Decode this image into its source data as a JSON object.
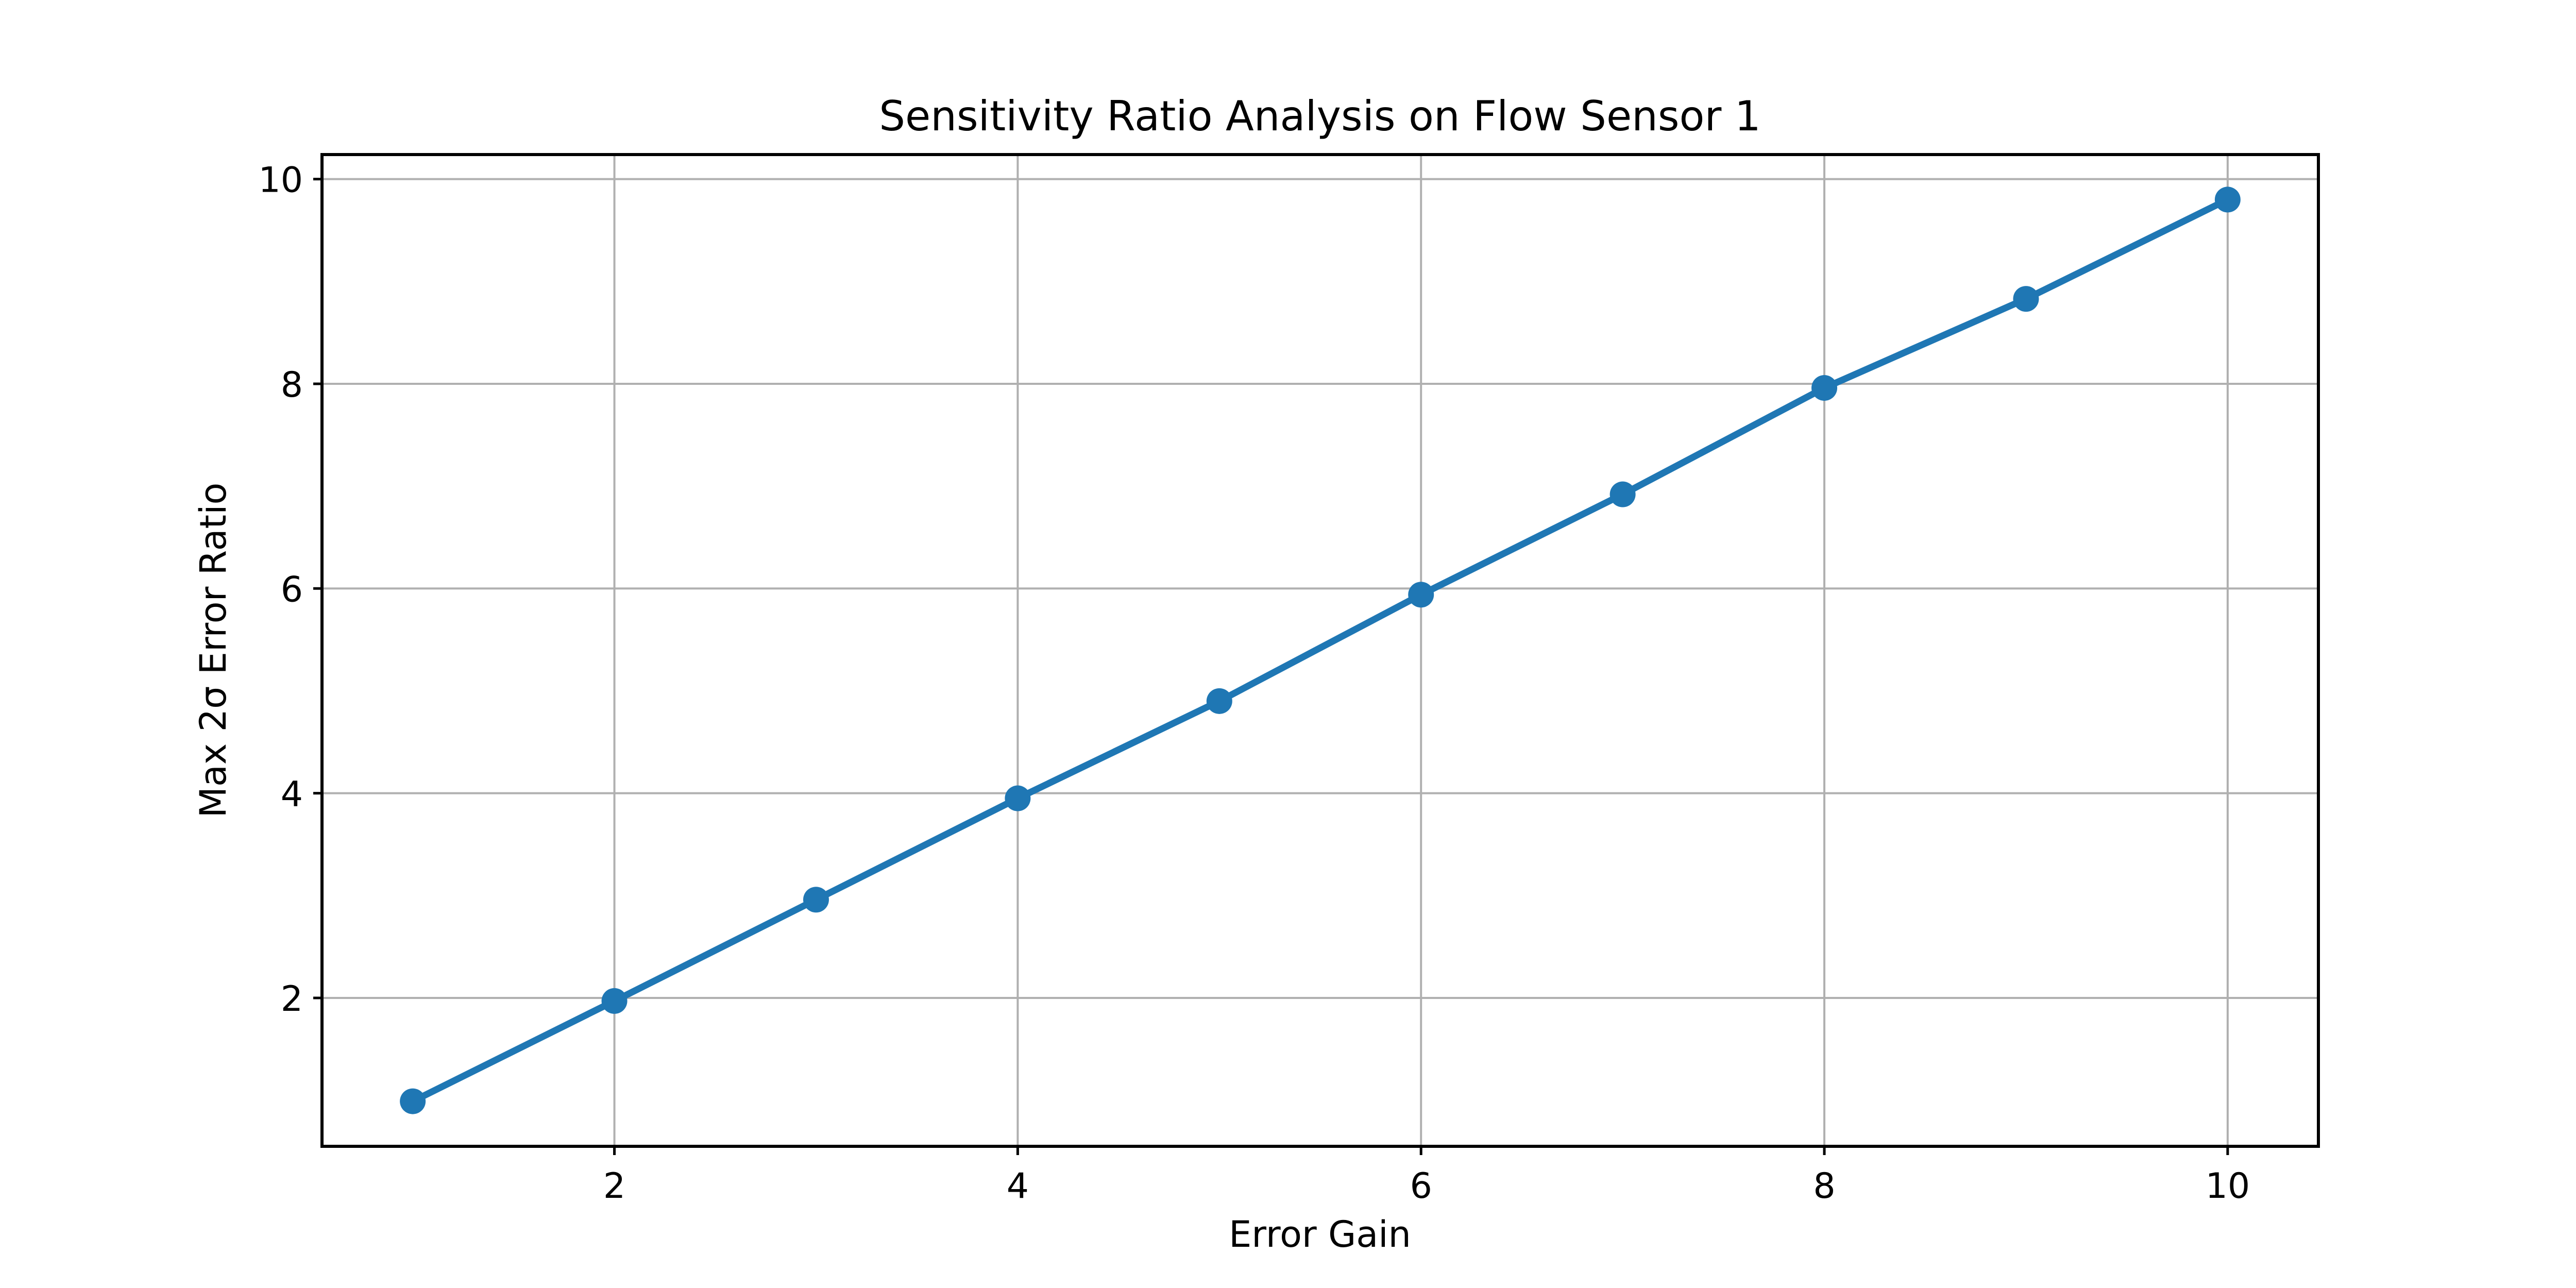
{
  "figure": {
    "background": "#ffffff"
  },
  "chart_data": {
    "type": "line",
    "title": "Sensitivity Ratio Analysis on Flow Sensor 1",
    "xlabel": "Error Gain",
    "ylabel": "Max 2σ Error Ratio",
    "x": [
      1,
      2,
      3,
      4,
      5,
      6,
      7,
      8,
      9,
      10
    ],
    "y": [
      0.99,
      1.97,
      2.96,
      3.95,
      4.9,
      5.94,
      6.92,
      7.96,
      8.83,
      9.8
    ],
    "xlim": [
      0.55,
      10.45
    ],
    "ylim": [
      0.55,
      10.24
    ],
    "xticks": [
      2,
      4,
      6,
      8,
      10
    ],
    "yticks": [
      2,
      4,
      6,
      8,
      10
    ],
    "xtick_labels": [
      "2",
      "4",
      "6",
      "8",
      "10"
    ],
    "ytick_labels": [
      "2",
      "4",
      "6",
      "8",
      "10"
    ],
    "grid": true,
    "legend_position": "none",
    "line_color": "#1f77b4",
    "marker": "circle",
    "marker_color": "#1f77b4",
    "grid_color": "#b0b0b0",
    "spine_color": "#000000",
    "text_color": "#000000"
  }
}
